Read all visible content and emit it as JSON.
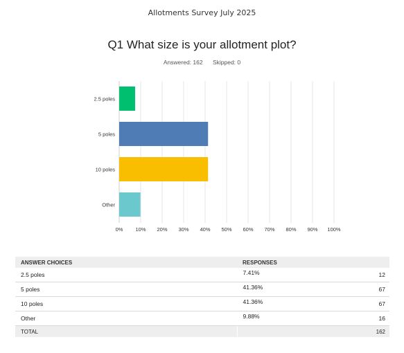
{
  "survey_title": "Allotments Survey July 2025",
  "question": {
    "title": "Q1 What size is your allotment plot?",
    "answered_label": "Answered: 162",
    "skipped_label": "Skipped: 0"
  },
  "chart_data": {
    "type": "bar",
    "orientation": "horizontal",
    "categories": [
      "2.5 poles",
      "5 poles",
      "10 poles",
      "Other"
    ],
    "values": [
      7.41,
      41.36,
      41.36,
      9.88
    ],
    "colors": [
      "#00bf6f",
      "#507cb6",
      "#f9be00",
      "#6bc8cd"
    ],
    "xlim": [
      0,
      100
    ],
    "xticks": [
      "0%",
      "10%",
      "20%",
      "30%",
      "40%",
      "50%",
      "60%",
      "70%",
      "80%",
      "90%",
      "100%"
    ],
    "grid": true
  },
  "table": {
    "headers": [
      "ANSWER CHOICES",
      "RESPONSES"
    ],
    "rows": [
      {
        "choice": "2.5 poles",
        "percent": "7.41%",
        "count": "12"
      },
      {
        "choice": "5 poles",
        "percent": "41.36%",
        "count": "67"
      },
      {
        "choice": "10 poles",
        "percent": "41.36%",
        "count": "67"
      },
      {
        "choice": "Other",
        "percent": "9.88%",
        "count": "16"
      }
    ],
    "total_label": "TOTAL",
    "total_count": "162"
  }
}
